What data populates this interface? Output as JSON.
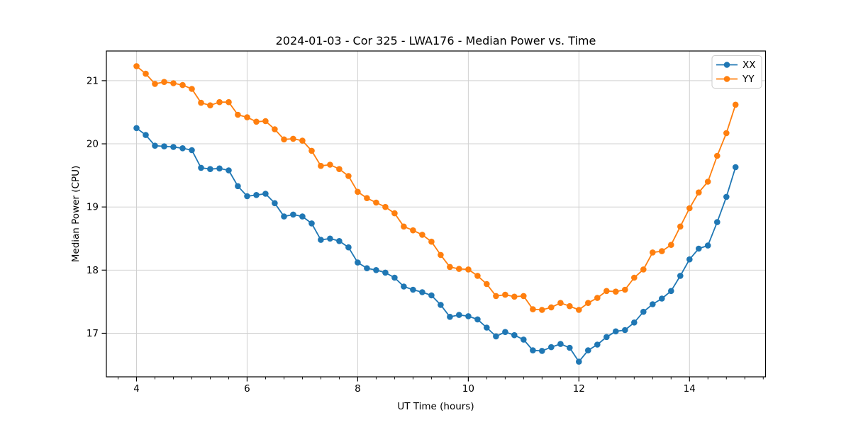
{
  "title": "2024-01-03 - Cor 325 - LWA176 - Median Power vs. Time",
  "colors": {
    "series_xx": "#1f77b4",
    "series_yy": "#ff7f0e",
    "grid": "#d0d0d0",
    "spine": "#000000",
    "legend_border": "#cccccc",
    "background": "#ffffff"
  },
  "chart_data": {
    "type": "line",
    "title": "2024-01-03 - Cor 325 - LWA176 - Median Power vs. Time",
    "xlabel": "UT Time (hours)",
    "ylabel": "Median Power (CPU)",
    "xlim": [
      3.455,
      15.375
    ],
    "ylim": [
      16.31,
      21.47
    ],
    "x_ticks": [
      4,
      6,
      8,
      10,
      12,
      14
    ],
    "y_ticks": [
      17,
      18,
      19,
      20,
      21
    ],
    "x_minor_step": 0.33333,
    "grid": true,
    "legend_position": "upper right",
    "marker": "circle",
    "x": [
      4.0,
      4.167,
      4.333,
      4.5,
      4.667,
      4.833,
      5.0,
      5.167,
      5.333,
      5.5,
      5.667,
      5.833,
      6.0,
      6.167,
      6.333,
      6.5,
      6.667,
      6.833,
      7.0,
      7.167,
      7.333,
      7.5,
      7.667,
      7.833,
      8.0,
      8.167,
      8.333,
      8.5,
      8.667,
      8.833,
      9.0,
      9.167,
      9.333,
      9.5,
      9.667,
      9.833,
      10.0,
      10.167,
      10.333,
      10.5,
      10.667,
      10.833,
      11.0,
      11.167,
      11.333,
      11.5,
      11.667,
      11.833,
      12.0,
      12.167,
      12.333,
      12.5,
      12.667,
      12.833,
      13.0,
      13.167,
      13.333,
      13.5,
      13.667,
      13.833,
      14.0,
      14.167,
      14.333,
      14.5,
      14.667,
      14.833
    ],
    "series": [
      {
        "name": "XX",
        "color": "#1f77b4",
        "values": [
          20.25,
          20.14,
          19.97,
          19.96,
          19.95,
          19.93,
          19.9,
          19.62,
          19.6,
          19.61,
          19.58,
          19.33,
          19.17,
          19.19,
          19.21,
          19.06,
          18.85,
          18.88,
          18.85,
          18.74,
          18.48,
          18.5,
          18.46,
          18.36,
          18.12,
          18.03,
          18.0,
          17.96,
          17.88,
          17.74,
          17.69,
          17.65,
          17.6,
          17.45,
          17.26,
          17.29,
          17.27,
          17.22,
          17.09,
          16.95,
          17.02,
          16.97,
          16.9,
          16.73,
          16.72,
          16.78,
          16.83,
          16.77,
          16.55,
          16.73,
          16.82,
          16.94,
          17.03,
          17.05,
          17.17,
          17.34,
          17.46,
          17.55,
          17.67,
          17.91,
          18.17,
          18.34,
          18.39,
          18.76,
          19.16,
          19.63
        ]
      },
      {
        "name": "YY",
        "color": "#ff7f0e",
        "values": [
          21.23,
          21.11,
          20.95,
          20.98,
          20.96,
          20.93,
          20.87,
          20.65,
          20.61,
          20.66,
          20.66,
          20.46,
          20.42,
          20.35,
          20.36,
          20.23,
          20.07,
          20.08,
          20.05,
          19.89,
          19.65,
          19.67,
          19.6,
          19.49,
          19.24,
          19.14,
          19.07,
          19.0,
          18.9,
          18.69,
          18.63,
          18.56,
          18.45,
          18.24,
          18.05,
          18.02,
          18.01,
          17.91,
          17.78,
          17.59,
          17.61,
          17.58,
          17.59,
          17.38,
          17.37,
          17.41,
          17.48,
          17.43,
          17.37,
          17.48,
          17.56,
          17.67,
          17.66,
          17.69,
          17.88,
          18.01,
          18.28,
          18.3,
          18.4,
          18.69,
          18.98,
          19.23,
          19.4,
          19.81,
          20.17,
          20.62
        ]
      }
    ]
  }
}
